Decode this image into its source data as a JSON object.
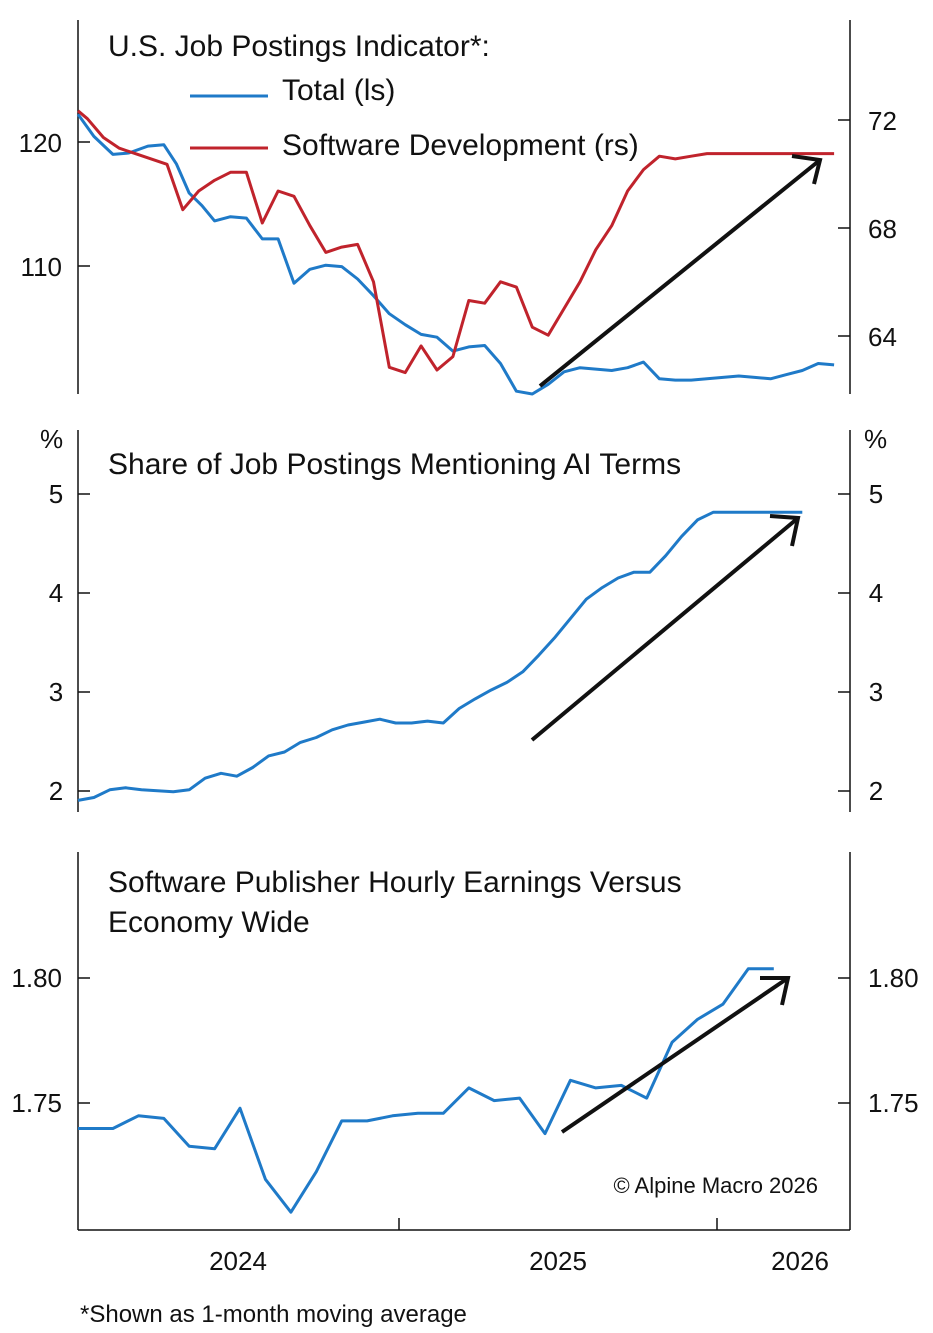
{
  "chart_data": [
    {
      "type": "line",
      "title": "U.S. Job Postings Indicator*:",
      "left_axis": {
        "ylim": [
          101,
          128
        ],
        "ticks": [
          110,
          120
        ]
      },
      "right_axis": {
        "ylim": [
          62,
          76
        ],
        "ticks": [
          64,
          68,
          72
        ]
      },
      "series": [
        {
          "name": "Total (ls)",
          "axis": "left",
          "color": "#1f7ac8",
          "x": [
            2023.57,
            2023.62,
            2023.68,
            2023.73,
            2023.79,
            2023.84,
            2023.88,
            2023.92,
            2023.96,
            2024.0,
            2024.05,
            2024.1,
            2024.15,
            2024.2,
            2024.25,
            2024.3,
            2024.35,
            2024.4,
            2024.45,
            2024.5,
            2024.55,
            2024.6,
            2024.65,
            2024.7,
            2024.75,
            2024.8,
            2024.85,
            2024.9,
            2024.95,
            2025.0,
            2025.05,
            2025.1,
            2025.15,
            2025.2,
            2025.25,
            2025.3,
            2025.35,
            2025.4,
            2025.45,
            2025.5,
            2025.55,
            2025.6,
            2025.65,
            2025.7,
            2025.75,
            2025.8,
            2025.85,
            2025.9,
            2025.95,
            2026.0
          ],
          "values": [
            121.2,
            119.6,
            118.3,
            118.4,
            118.9,
            119.0,
            117.6,
            115.5,
            114.6,
            113.5,
            113.8,
            113.7,
            112.2,
            112.2,
            109.0,
            110.0,
            110.3,
            110.2,
            109.3,
            108.1,
            106.8,
            106.0,
            105.3,
            105.1,
            104.1,
            104.4,
            104.5,
            103.2,
            101.2,
            101.0,
            101.7,
            102.6,
            102.9,
            102.8,
            102.7,
            102.9,
            103.3,
            102.1,
            102.0,
            102.0,
            102.1,
            102.2,
            102.3,
            102.2,
            102.1,
            102.4,
            102.7,
            103.2,
            103.1,
            102.3
          ]
        },
        {
          "name": "Software Development (rs)",
          "axis": "right",
          "color": "#c0232c",
          "x": [
            2023.57,
            2023.6,
            2023.65,
            2023.7,
            2023.75,
            2023.8,
            2023.85,
            2023.9,
            2023.95,
            2024.0,
            2024.05,
            2024.1,
            2024.15,
            2024.2,
            2024.25,
            2024.3,
            2024.35,
            2024.4,
            2024.45,
            2024.5,
            2024.55,
            2024.6,
            2024.65,
            2024.7,
            2024.75,
            2024.8,
            2024.85,
            2024.9,
            2024.95,
            2025.0,
            2025.05,
            2025.1,
            2025.15,
            2025.2,
            2025.25,
            2025.3,
            2025.35,
            2025.4,
            2025.45,
            2025.5,
            2025.55,
            2025.6,
            2025.65,
            2025.7,
            2025.75,
            2025.8,
            2025.85,
            2025.9,
            2025.95,
            2026.0
          ],
          "values": [
            72.6,
            72.3,
            71.6,
            71.2,
            71.0,
            70.8,
            70.6,
            68.9,
            69.6,
            70.0,
            70.3,
            70.3,
            68.4,
            69.6,
            69.4,
            68.3,
            67.3,
            67.5,
            67.6,
            66.2,
            63.0,
            62.8,
            63.8,
            62.9,
            63.4,
            65.5,
            65.4,
            66.2,
            66.0,
            64.5,
            64.2,
            65.2,
            66.2,
            67.4,
            68.3,
            69.6,
            70.4,
            70.9,
            70.8,
            70.9,
            71.0,
            71.0,
            71.0,
            71.0,
            71.0,
            71.0,
            71.0,
            71.0,
            71.0,
            71.0
          ]
        }
      ],
      "annotation": "trend-arrow"
    },
    {
      "type": "line",
      "title": "Share of Job Postings Mentioning AI Terms",
      "left_axis": {
        "unit": "%",
        "ylim": [
          1.8,
          5.75
        ],
        "ticks": [
          2,
          3,
          4,
          5
        ]
      },
      "right_axis": {
        "unit": "%",
        "ylim": [
          1.8,
          5.75
        ],
        "ticks": [
          2,
          3,
          4,
          5
        ]
      },
      "series": [
        {
          "name": "",
          "axis": "left",
          "color": "#1f7ac8",
          "x": [
            2023.57,
            2023.62,
            2023.67,
            2023.72,
            2023.77,
            2023.82,
            2023.87,
            2023.92,
            2023.97,
            2024.02,
            2024.07,
            2024.12,
            2024.17,
            2024.22,
            2024.27,
            2024.32,
            2024.37,
            2024.42,
            2024.47,
            2024.52,
            2024.57,
            2024.62,
            2024.67,
            2024.72,
            2024.77,
            2024.82,
            2024.87,
            2024.92,
            2024.97,
            2025.02,
            2025.07,
            2025.12,
            2025.17,
            2025.22,
            2025.27,
            2025.32,
            2025.37,
            2025.42,
            2025.47,
            2025.52,
            2025.57,
            2025.62,
            2025.67,
            2025.72,
            2025.77,
            2025.82,
            2025.85
          ],
          "values": [
            1.92,
            1.95,
            2.03,
            2.05,
            2.03,
            2.02,
            2.01,
            2.03,
            2.15,
            2.2,
            2.17,
            2.26,
            2.38,
            2.42,
            2.52,
            2.57,
            2.65,
            2.7,
            2.73,
            2.76,
            2.72,
            2.72,
            2.74,
            2.72,
            2.87,
            2.97,
            3.06,
            3.14,
            3.25,
            3.42,
            3.6,
            3.8,
            4.0,
            4.12,
            4.22,
            4.28,
            4.28,
            4.45,
            4.65,
            4.82,
            4.9,
            4.9,
            4.9,
            4.9,
            4.9,
            4.9,
            4.9
          ]
        }
      ],
      "annotation": "trend-arrow"
    },
    {
      "type": "line",
      "title": "Software Publisher Hourly Earnings Versus Economy Wide",
      "left_axis": {
        "ylim": [
          1.706,
          1.855
        ],
        "ticks": [
          1.75,
          1.8
        ]
      },
      "right_axis": {
        "ylim": [
          1.706,
          1.855
        ],
        "ticks": [
          1.75,
          1.8
        ]
      },
      "series": [
        {
          "name": "",
          "axis": "left",
          "color": "#1f7ac8",
          "x": [
            2023.57,
            2023.6,
            2023.68,
            2023.76,
            2023.84,
            2023.92,
            2024.0,
            2024.08,
            2024.16,
            2024.24,
            2024.32,
            2024.4,
            2024.48,
            2024.56,
            2024.64,
            2024.72,
            2024.8,
            2024.88,
            2024.96,
            2025.04,
            2025.12,
            2025.2,
            2025.28,
            2025.36,
            2025.44,
            2025.52,
            2025.6,
            2025.68,
            2025.76,
            2025.84
          ],
          "values": [
            1.746,
            1.746,
            1.746,
            1.751,
            1.75,
            1.739,
            1.738,
            1.754,
            1.726,
            1.713,
            1.729,
            1.749,
            1.749,
            1.751,
            1.752,
            1.752,
            1.762,
            1.757,
            1.758,
            1.744,
            1.765,
            1.762,
            1.763,
            1.758,
            1.78,
            1.789,
            1.795,
            1.809,
            1.809,
            1.809
          ]
        }
      ],
      "annotation": "trend-arrow"
    }
  ],
  "x_axis": {
    "ticks": [
      "2024",
      "2025",
      "2026"
    ]
  },
  "legend": {
    "total": "Total (ls)",
    "software": "Software Development (rs)"
  },
  "copyright": "© Alpine Macro 2026",
  "footnote": "*Shown as 1-month moving average",
  "colors": {
    "blue": "#1f7ac8",
    "red": "#c0232c",
    "axis": "#111111"
  }
}
